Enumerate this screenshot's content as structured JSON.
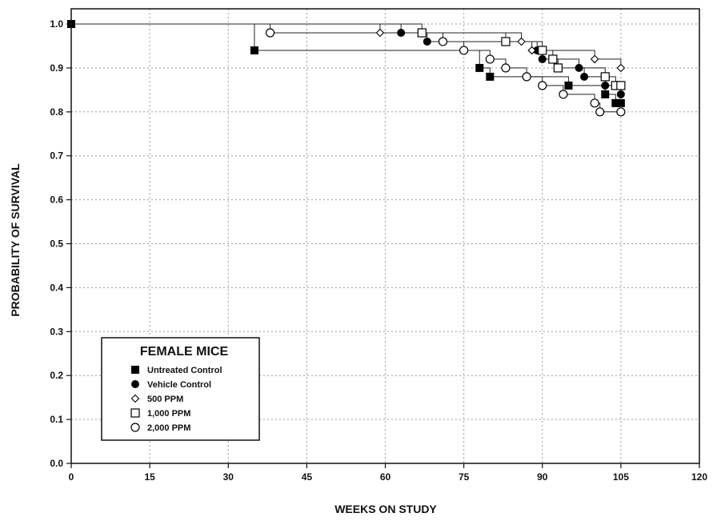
{
  "chart_data": {
    "type": "line",
    "title": "",
    "xlabel": "WEEKS ON STUDY",
    "ylabel": "PROBABILITY OF SURVIVAL",
    "xlim": [
      0,
      120
    ],
    "ylim": [
      0.0,
      1.0
    ],
    "x_ticks": [
      "0",
      "15",
      "30",
      "45",
      "60",
      "75",
      "90",
      "105",
      "120"
    ],
    "y_ticks": [
      "0.0",
      "0.1",
      "0.2",
      "0.3",
      "0.4",
      "0.5",
      "0.6",
      "0.7",
      "0.8",
      "0.9",
      "1.0"
    ],
    "grid": true,
    "step": true,
    "legend": {
      "title": "FEMALE MICE",
      "placement": "bottom-left"
    },
    "series": [
      {
        "name": "Untreated Control",
        "marker": "filled-square",
        "points": [
          [
            0,
            1.0
          ],
          [
            35,
            0.94
          ],
          [
            78,
            0.9
          ],
          [
            80,
            0.88
          ],
          [
            95,
            0.86
          ],
          [
            102,
            0.84
          ],
          [
            104,
            0.82
          ],
          [
            105,
            0.82
          ]
        ]
      },
      {
        "name": "Vehicle Control",
        "marker": "filled-circle",
        "points": [
          [
            0,
            1.0
          ],
          [
            63,
            0.98
          ],
          [
            68,
            0.96
          ],
          [
            89,
            0.94
          ],
          [
            90,
            0.92
          ],
          [
            97,
            0.9
          ],
          [
            98,
            0.88
          ],
          [
            102,
            0.86
          ],
          [
            105,
            0.84
          ]
        ]
      },
      {
        "name": "500 PPM",
        "marker": "open-diamond",
        "points": [
          [
            0,
            1.0
          ],
          [
            59,
            0.98
          ],
          [
            86,
            0.96
          ],
          [
            88,
            0.94
          ],
          [
            100,
            0.92
          ],
          [
            105,
            0.9
          ]
        ]
      },
      {
        "name": "1,000 PPM",
        "marker": "open-square",
        "points": [
          [
            0,
            1.0
          ],
          [
            67,
            0.98
          ],
          [
            83,
            0.96
          ],
          [
            90,
            0.94
          ],
          [
            92,
            0.92
          ],
          [
            93,
            0.9
          ],
          [
            102,
            0.88
          ],
          [
            104,
            0.86
          ],
          [
            105,
            0.86
          ]
        ]
      },
      {
        "name": "2,000 PPM",
        "marker": "open-circle",
        "points": [
          [
            0,
            1.0
          ],
          [
            38,
            0.98
          ],
          [
            71,
            0.96
          ],
          [
            75,
            0.94
          ],
          [
            80,
            0.92
          ],
          [
            83,
            0.9
          ],
          [
            87,
            0.88
          ],
          [
            90,
            0.86
          ],
          [
            94,
            0.84
          ],
          [
            100,
            0.82
          ],
          [
            101,
            0.8
          ],
          [
            105,
            0.8
          ]
        ]
      }
    ]
  }
}
